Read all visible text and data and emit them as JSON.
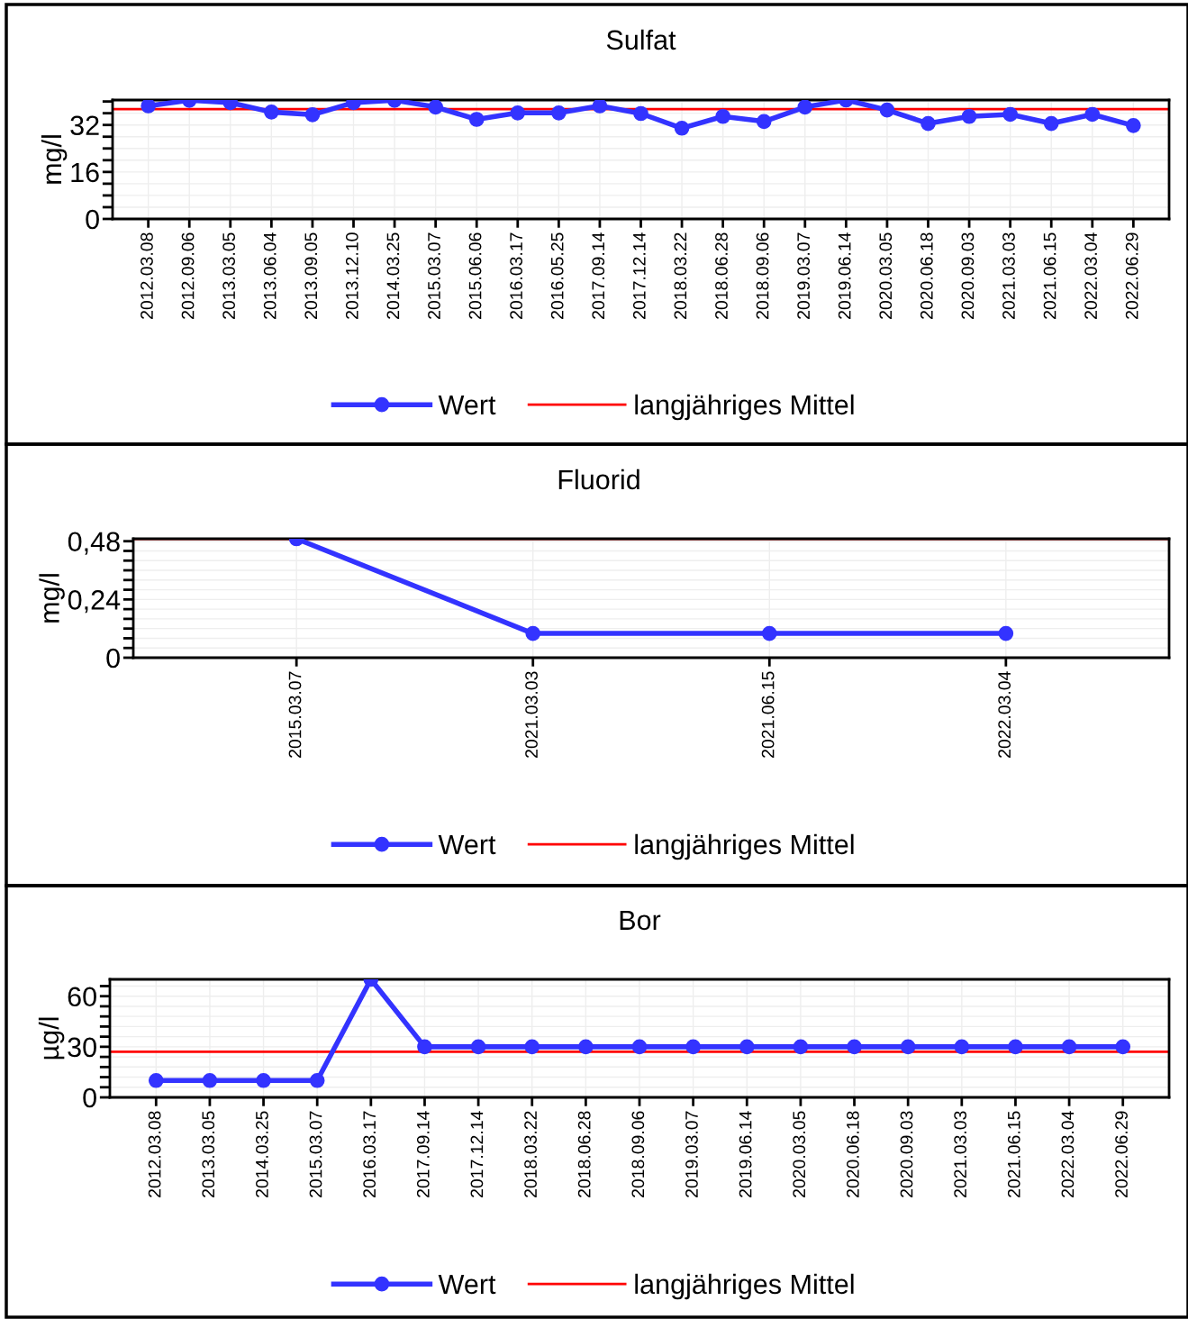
{
  "chart_data": [
    {
      "type": "line",
      "title": "Sulfat",
      "ylabel": "mg/l",
      "categories": [
        "2012.03.08",
        "2012.09.06",
        "2013.03.05",
        "2013.06.04",
        "2013.09.05",
        "2013.12.10",
        "2014.03.25",
        "2015.03.07",
        "2015.06.06",
        "2016.03.17",
        "2016.05.25",
        "2017.09.14",
        "2017.12.14",
        "2018.03.22",
        "2018.06.28",
        "2018.09.06",
        "2019.03.07",
        "2019.06.14",
        "2020.03.05",
        "2020.06.18",
        "2020.09.03",
        "2021.03.03",
        "2021.06.15",
        "2022.03.04",
        "2022.06.29"
      ],
      "series": [
        {
          "name": "Wert",
          "color": "#3333ff",
          "values": [
            38.5,
            40.4,
            39.6,
            36.4,
            35.5,
            39.6,
            40.4,
            38.1,
            33.9,
            36.1,
            36.1,
            38.5,
            35.9,
            30.9,
            34.9,
            33.2,
            38.1,
            40.5,
            37.1,
            32.5,
            34.9,
            35.6,
            32.5,
            35.6,
            31.8
          ]
        }
      ],
      "ref_lines": [
        {
          "axis": "y",
          "value": 37.4,
          "label": "langjähriges Mittel",
          "color": "#ff0000"
        }
      ],
      "ylim": [
        0,
        40.5
      ],
      "yticks": [
        0,
        {
          "value": 4,
          "label": null
        },
        {
          "value": 8,
          "label": null
        },
        {
          "value": 12,
          "label": null
        },
        16,
        {
          "value": 20,
          "label": null
        },
        {
          "value": 24,
          "label": null
        },
        {
          "value": 28,
          "label": null
        },
        32,
        {
          "value": 36,
          "label": null
        },
        {
          "value": 40,
          "label": null
        }
      ],
      "grid": true,
      "legend": "bottom",
      "marker": "circle",
      "line_style": "solid"
    },
    {
      "type": "line",
      "title": "Fluorid",
      "ylabel": "mg/l",
      "categories": [
        "2015.03.07",
        "2021.03.03",
        "2021.06.15",
        "2022.03.04"
      ],
      "series": [
        {
          "name": "Wert",
          "color": "#3333ff",
          "values": [
            0.49,
            0.1,
            0.1,
            0.1
          ]
        }
      ],
      "ref_lines": [
        {
          "axis": "y",
          "value": 0.49,
          "label": "langjähriges Mittel",
          "color": "#ff0000"
        }
      ],
      "ylim": [
        0,
        0.49
      ],
      "yticks": [
        0,
        {
          "value": 0.04,
          "label": null
        },
        {
          "value": 0.08,
          "label": null
        },
        {
          "value": 0.12,
          "label": null
        },
        {
          "value": 0.16,
          "label": null
        },
        {
          "value": 0.2,
          "label": null
        },
        {
          "value": 0.24,
          "label": "0,24"
        },
        {
          "value": 0.28,
          "label": null
        },
        {
          "value": 0.32,
          "label": null
        },
        {
          "value": 0.36,
          "label": null
        },
        {
          "value": 0.4,
          "label": null
        },
        {
          "value": 0.44,
          "label": null
        },
        {
          "value": 0.48,
          "label": "0,48"
        }
      ],
      "grid": true,
      "legend": "bottom",
      "marker": "circle",
      "line_style": "solid"
    },
    {
      "type": "line",
      "title": "Bor",
      "ylabel": "µg/l",
      "categories": [
        "2012.03.08",
        "2013.03.05",
        "2014.03.25",
        "2015.03.07",
        "2016.03.17",
        "2017.09.14",
        "2017.12.14",
        "2018.03.22",
        "2018.06.28",
        "2018.09.06",
        "2019.03.07",
        "2019.06.14",
        "2020.03.05",
        "2020.06.18",
        "2020.09.03",
        "2021.03.03",
        "2021.06.15",
        "2022.03.04",
        "2022.06.29"
      ],
      "series": [
        {
          "name": "Wert",
          "color": "#3333ff",
          "values": [
            10,
            10,
            10,
            10,
            70,
            30,
            30,
            30,
            30,
            30,
            30,
            30,
            30,
            30,
            30,
            30,
            30,
            30,
            30
          ]
        }
      ],
      "ref_lines": [
        {
          "axis": "y",
          "value": 27,
          "label": "langjähriges Mittel",
          "color": "#ff0000"
        }
      ],
      "ylim": [
        0,
        70
      ],
      "yticks": [
        0,
        {
          "value": 6,
          "label": null
        },
        {
          "value": 12,
          "label": null
        },
        {
          "value": 18,
          "label": null
        },
        {
          "value": 24,
          "label": null
        },
        30,
        {
          "value": 36,
          "label": null
        },
        {
          "value": 42,
          "label": null
        },
        {
          "value": 48,
          "label": null
        },
        {
          "value": 54,
          "label": null
        },
        60,
        {
          "value": 66,
          "label": null
        }
      ],
      "grid": true,
      "legend": "bottom",
      "marker": "circle",
      "line_style": "solid"
    }
  ]
}
